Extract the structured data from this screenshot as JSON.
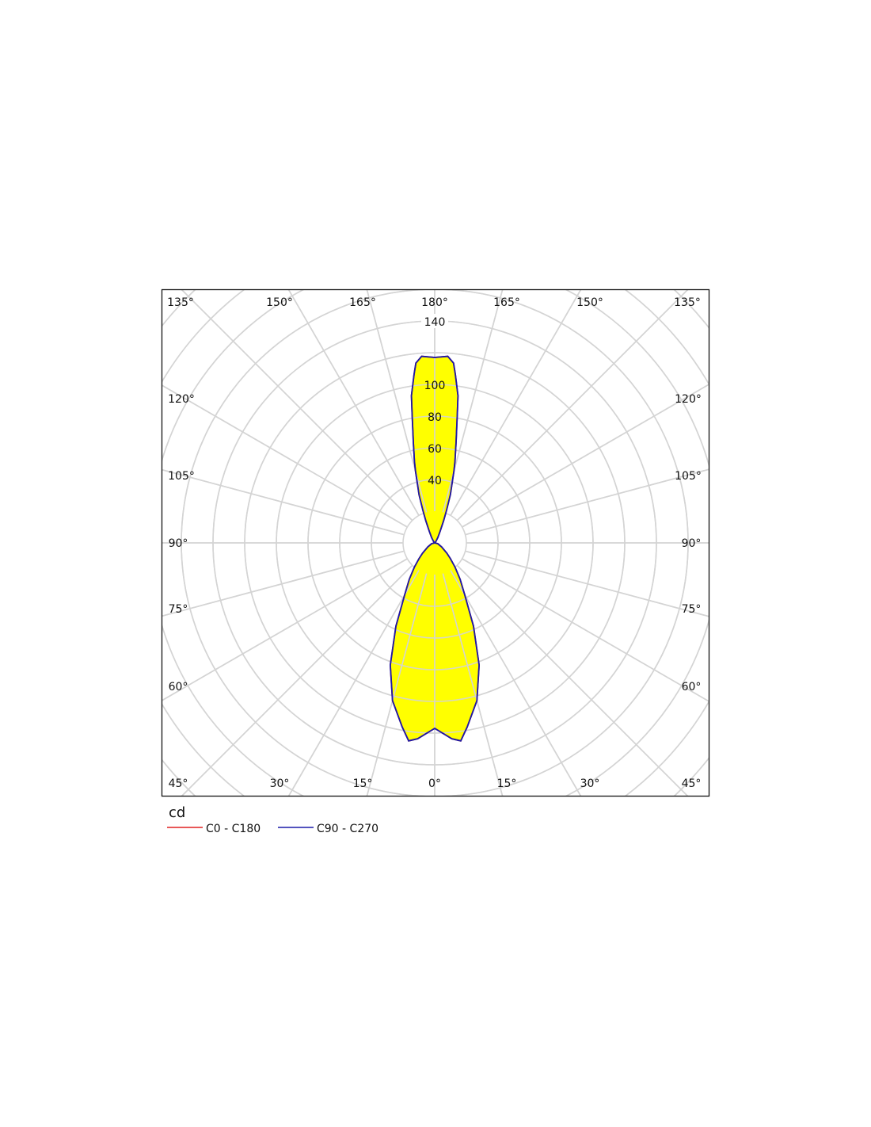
{
  "chart_data": {
    "type": "polar",
    "unit_label": "cd",
    "radial_tick_labels": [
      40,
      60,
      80,
      100,
      140
    ],
    "radial_range": [
      0,
      220
    ],
    "radial_step": 20,
    "angle_step": 15,
    "grid": true,
    "angle_labels": {
      "top": [
        "135°",
        "150°",
        "165°",
        "180°",
        "165°",
        "150°",
        "135°"
      ],
      "left": [
        "120°",
        "105°",
        "90°",
        "75°",
        "60°"
      ],
      "right": [
        "120°",
        "105°",
        "90°",
        "75°",
        "60°"
      ],
      "bottom": [
        "45°",
        "30°",
        "15°",
        "0°",
        "15°",
        "30°",
        "45°"
      ]
    },
    "gamma": [
      0,
      5,
      7.5,
      10,
      15,
      20,
      25,
      30,
      35,
      40,
      45,
      50,
      60,
      75,
      90,
      105,
      120,
      140,
      150,
      155,
      158,
      160,
      162,
      165,
      166,
      168,
      170,
      171,
      173,
      174,
      176,
      180
    ],
    "series": [
      {
        "name": "C0 - C180",
        "color": "#e02020",
        "values": [
          117,
          124,
          126,
          118,
          103,
          82,
          58,
          38,
          28,
          20,
          14,
          10,
          5,
          2,
          0,
          0,
          0,
          1,
          4,
          8,
          15,
          22,
          32,
          47,
          53,
          65,
          82,
          94,
          107,
          114,
          118,
          117
        ]
      },
      {
        "name": "C90 - C270",
        "color": "#1a1aa8",
        "values": [
          117,
          124,
          126,
          118,
          103,
          82,
          58,
          38,
          28,
          20,
          14,
          10,
          5,
          2,
          0,
          0,
          0,
          1,
          4,
          8,
          15,
          22,
          32,
          47,
          53,
          65,
          82,
          94,
          107,
          114,
          118,
          117
        ]
      }
    ],
    "fill_color": "#ffff00",
    "grid_color": "#d4d4d4",
    "legend_position": "bottom-left"
  }
}
